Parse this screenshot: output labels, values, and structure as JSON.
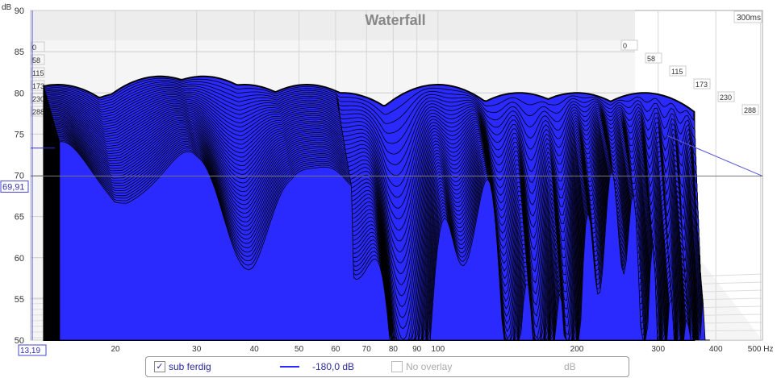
{
  "chart_data": {
    "type": "waterfall",
    "title": "Waterfall",
    "ylabel": "dB",
    "xlabel": "Hz",
    "ylim": [
      50,
      90
    ],
    "xlim": [
      13.19,
      500
    ],
    "y_ticks": [
      "90",
      "85",
      "80",
      "75",
      "70",
      "65",
      "60",
      "55",
      "50"
    ],
    "x_ticks": [
      {
        "v": 20,
        "l": "20"
      },
      {
        "v": 30,
        "l": "30"
      },
      {
        "v": 40,
        "l": "40"
      },
      {
        "v": 50,
        "l": "50"
      },
      {
        "v": 60,
        "l": "60"
      },
      {
        "v": 70,
        "l": "70"
      },
      {
        "v": 80,
        "l": "80"
      },
      {
        "v": 90,
        "l": "90"
      },
      {
        "v": 100,
        "l": "100"
      },
      {
        "v": 200,
        "l": "200"
      },
      {
        "v": 300,
        "l": "300"
      },
      {
        "v": 400,
        "l": "400"
      },
      {
        "v": 500,
        "l": "500 Hz"
      }
    ],
    "time_axis_labels": [
      "0",
      "58",
      "115",
      "173",
      "230",
      "288"
    ],
    "time_range_label": "300ms",
    "cursor_y": "69,91",
    "cursor_x": "13,19",
    "front_slice_peaks": [
      {
        "f": 15,
        "db": 81
      },
      {
        "f": 21,
        "db": 80
      },
      {
        "f": 25,
        "db": 82
      },
      {
        "f": 31,
        "db": 82
      },
      {
        "f": 38,
        "db": 81
      },
      {
        "f": 52,
        "db": 81
      },
      {
        "f": 62,
        "db": 80
      },
      {
        "f": 100,
        "db": 81
      },
      {
        "f": 150,
        "db": 80
      },
      {
        "f": 200,
        "db": 80
      },
      {
        "f": 280,
        "db": 80
      }
    ],
    "series_color": "#2a2aff"
  },
  "legend": {
    "series_name": "sub ferdig",
    "level": "-180,0 dB",
    "overlay": "No overlay",
    "unit": "dB",
    "checked": "✓"
  }
}
